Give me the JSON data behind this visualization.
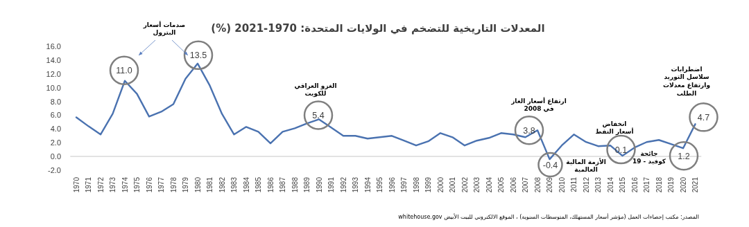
{
  "chart_data": {
    "type": "line",
    "title": "المعدلات التاريخية للتضخم في الولايات المتحدة: 1970-2021 (%)",
    "categories": [
      "1970",
      "1971",
      "1972",
      "1973",
      "1974",
      "1975",
      "1976",
      "1977",
      "1978",
      "1979",
      "1980",
      "1981",
      "1982",
      "1983",
      "1984",
      "1985",
      "1986",
      "1987",
      "1988",
      "1989",
      "1990",
      "1991",
      "1992",
      "1993",
      "1994",
      "1995",
      "1996",
      "1997",
      "1998",
      "1999",
      "2000",
      "2001",
      "2002",
      "2003",
      "2004",
      "2005",
      "2006",
      "2007",
      "2008",
      "2009",
      "2010",
      "2011",
      "2012",
      "2013",
      "2014",
      "2015",
      "2016",
      "2017",
      "2018",
      "2019",
      "2020",
      "2021"
    ],
    "values": [
      5.7,
      4.4,
      3.2,
      6.2,
      11.0,
      9.1,
      5.8,
      6.5,
      7.6,
      11.3,
      13.5,
      10.3,
      6.2,
      3.2,
      4.3,
      3.6,
      1.9,
      3.6,
      4.1,
      4.8,
      5.4,
      4.2,
      3.0,
      3.0,
      2.6,
      2.8,
      3.0,
      2.3,
      1.6,
      2.2,
      3.4,
      2.8,
      1.6,
      2.3,
      2.7,
      3.4,
      3.2,
      2.8,
      3.8,
      -0.4,
      1.6,
      3.2,
      2.1,
      1.5,
      1.6,
      0.1,
      1.3,
      2.1,
      2.4,
      1.8,
      1.2,
      4.7
    ],
    "value_labels": [
      null,
      null,
      null,
      null,
      "11.0",
      null,
      null,
      null,
      null,
      null,
      "13.5",
      null,
      null,
      null,
      null,
      null,
      null,
      null,
      null,
      null,
      "5.4",
      null,
      null,
      null,
      null,
      null,
      null,
      null,
      null,
      null,
      null,
      null,
      null,
      null,
      null,
      null,
      null,
      null,
      "3.8",
      "-0.4",
      null,
      null,
      null,
      null,
      null,
      "0.1",
      null,
      null,
      null,
      null,
      "1.2",
      "4.7"
    ],
    "color": "#4a72b0",
    "marker": "none",
    "ylim": [
      -2,
      16
    ],
    "yticks": [
      {
        "value": -2,
        "label": "-2.0"
      },
      {
        "value": 0,
        "label": "0.0"
      },
      {
        "value": 2,
        "label": "2.0"
      },
      {
        "value": 4,
        "label": "4.0"
      },
      {
        "value": 6,
        "label": "6.0"
      },
      {
        "value": 8,
        "label": "8.0"
      },
      {
        "value": 10,
        "label": "10.0"
      },
      {
        "value": 12,
        "label": "12.0"
      },
      {
        "value": 14,
        "label": "14.0"
      },
      {
        "value": 16,
        "label": "16.0"
      }
    ],
    "ref_lines": [
      {
        "axis": "y",
        "value": 0,
        "color": "#d9d9d9"
      }
    ],
    "annotations": [
      "صدمات أسعار البترول",
      "الغزو العراقي للكويت",
      "ارتفاع أسعار الغاز في 2008",
      "الأزمة المالية العالمية",
      "انخفاض أسعار النفط",
      "جائحة كوفيد - 19",
      "اضطرابات سلاسل التوريد وارتفاع معدلات الطلب",
      "المصدر: مكتب إحصاءات العمل (مؤشر أسعار المستهلك، المتوسطات السنوية) ، الموقع الالكتروني للبيت الأبيض whitehouse.gov"
    ]
  }
}
